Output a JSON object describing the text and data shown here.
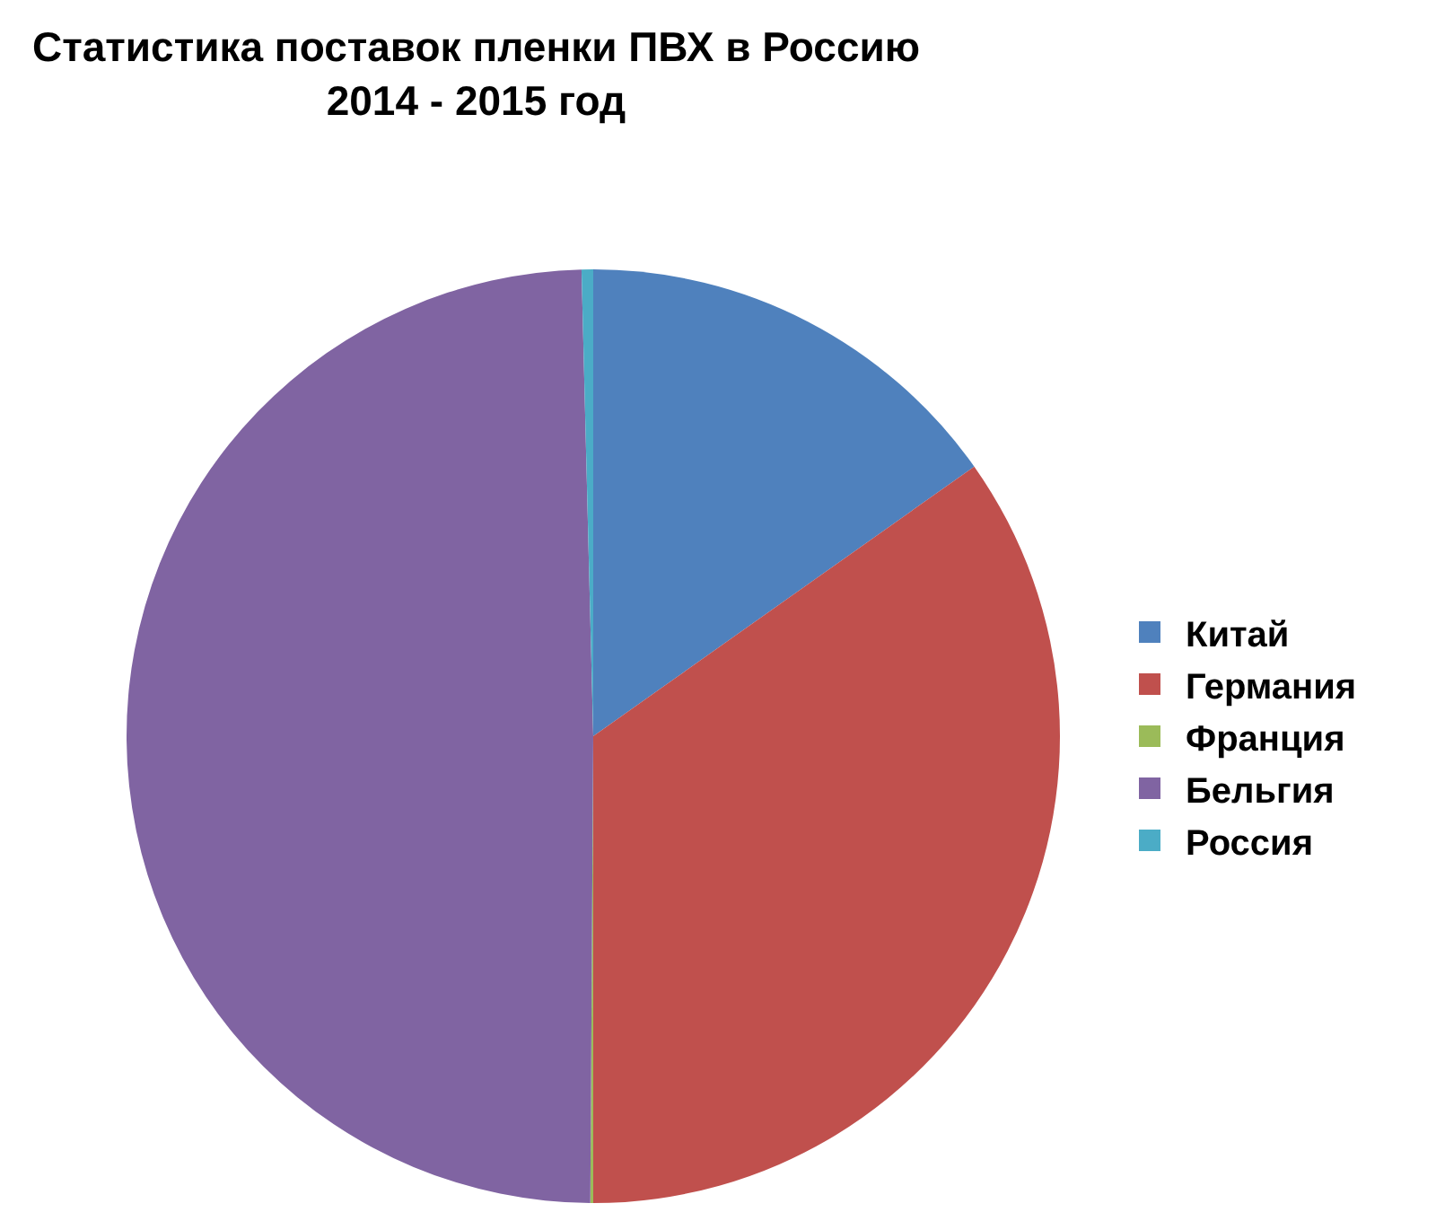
{
  "chart_data": {
    "type": "pie",
    "title": "Статистика поставок пленки ПВХ в Россию\n2014 - 2015 год",
    "categories": [
      "Китай",
      "Германия",
      "Франция",
      "Бельгия",
      "Россия"
    ],
    "values": [
      15.2,
      34.8,
      0.1,
      49.5,
      0.4
    ],
    "colors": [
      "#4f81bd",
      "#c0504d",
      "#9bbb59",
      "#8064a2",
      "#4bacc6"
    ],
    "legend": "right"
  }
}
